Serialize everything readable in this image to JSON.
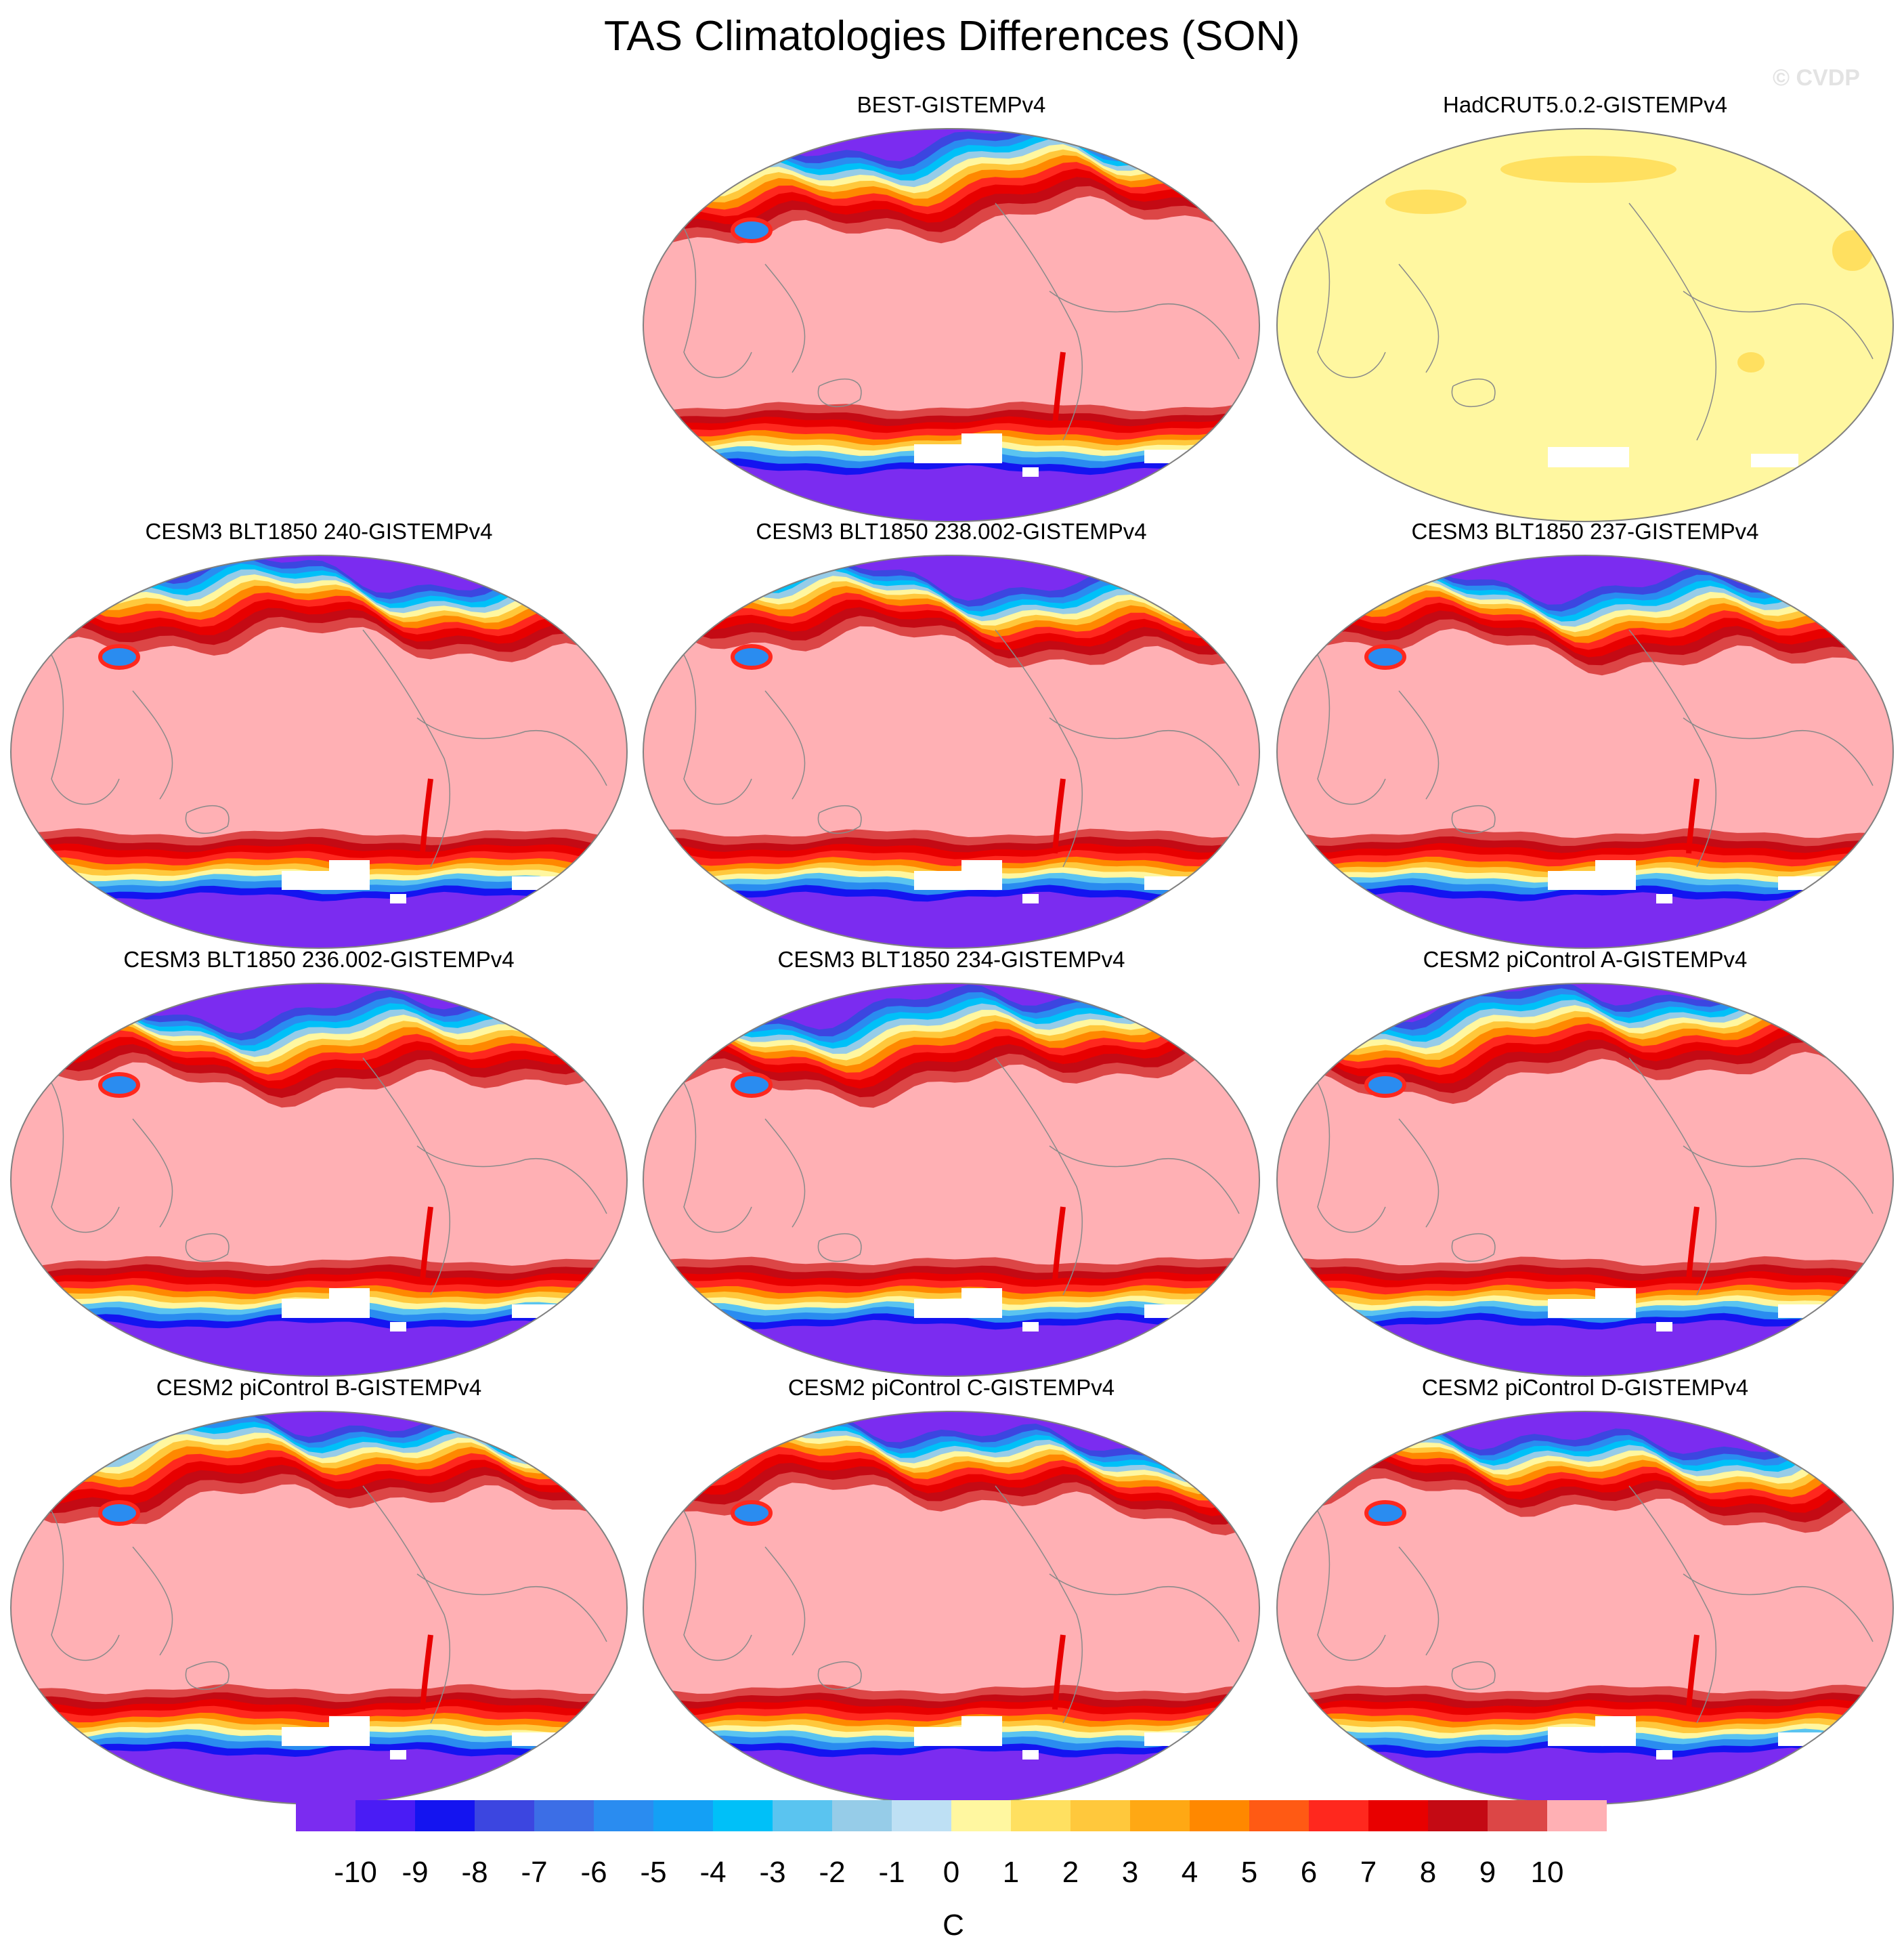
{
  "title": "TAS Climatologies Differences (SON)",
  "watermark": "© CVDP",
  "colorbar": {
    "units": "C",
    "tick_labels": [
      "-10",
      "-9",
      "-8",
      "-7",
      "-6",
      "-5",
      "-4",
      "-3",
      "-2",
      "-1",
      "0",
      "1",
      "2",
      "3",
      "4",
      "5",
      "6",
      "7",
      "8",
      "9",
      "10"
    ],
    "colors": [
      "#7b2cf0",
      "#4a1cf5",
      "#1414f0",
      "#3c46e0",
      "#3c6ee6",
      "#2a8cf0",
      "#14a0f5",
      "#00c0f8",
      "#5ac4f0",
      "#96cce8",
      "#bee0f4",
      "#fff7a0",
      "#ffe060",
      "#ffc83c",
      "#ffa814",
      "#ff8800",
      "#ff5a14",
      "#ff281e",
      "#e80000",
      "#c40a14",
      "#dc4646",
      "#ffb0b4"
    ]
  },
  "chart_data": {
    "type": "heatmap",
    "projection": "Robinson (Pacific-centered)",
    "variable": "TAS",
    "season": "SON",
    "units": "C",
    "contour_levels": [
      -10,
      -9,
      -8,
      -7,
      -6,
      -5,
      -4,
      -3,
      -2,
      -1,
      0,
      1,
      2,
      3,
      4,
      5,
      6,
      7,
      8,
      9,
      10
    ],
    "panels": [
      {
        "title": "BEST-GISTEMPv4",
        "pattern": "bands"
      },
      {
        "title": "HadCRUT5.0.2-GISTEMPv4",
        "pattern": "small"
      },
      {
        "title": "CESM3 BLT1850 240-GISTEMPv4",
        "pattern": "bands"
      },
      {
        "title": "CESM3 BLT1850 238.002-GISTEMPv4",
        "pattern": "bands"
      },
      {
        "title": "CESM3 BLT1850 237-GISTEMPv4",
        "pattern": "bands"
      },
      {
        "title": "CESM3 BLT1850 236.002-GISTEMPv4",
        "pattern": "bands"
      },
      {
        "title": "CESM3 BLT1850 234-GISTEMPv4",
        "pattern": "bands"
      },
      {
        "title": "CESM2 piControl A-GISTEMPv4",
        "pattern": "bands"
      },
      {
        "title": "CESM2 piControl B-GISTEMPv4",
        "pattern": "bands"
      },
      {
        "title": "CESM2 piControl C-GISTEMPv4",
        "pattern": "bands"
      },
      {
        "title": "CESM2 piControl D-GISTEMPv4",
        "pattern": "bands"
      }
    ]
  }
}
